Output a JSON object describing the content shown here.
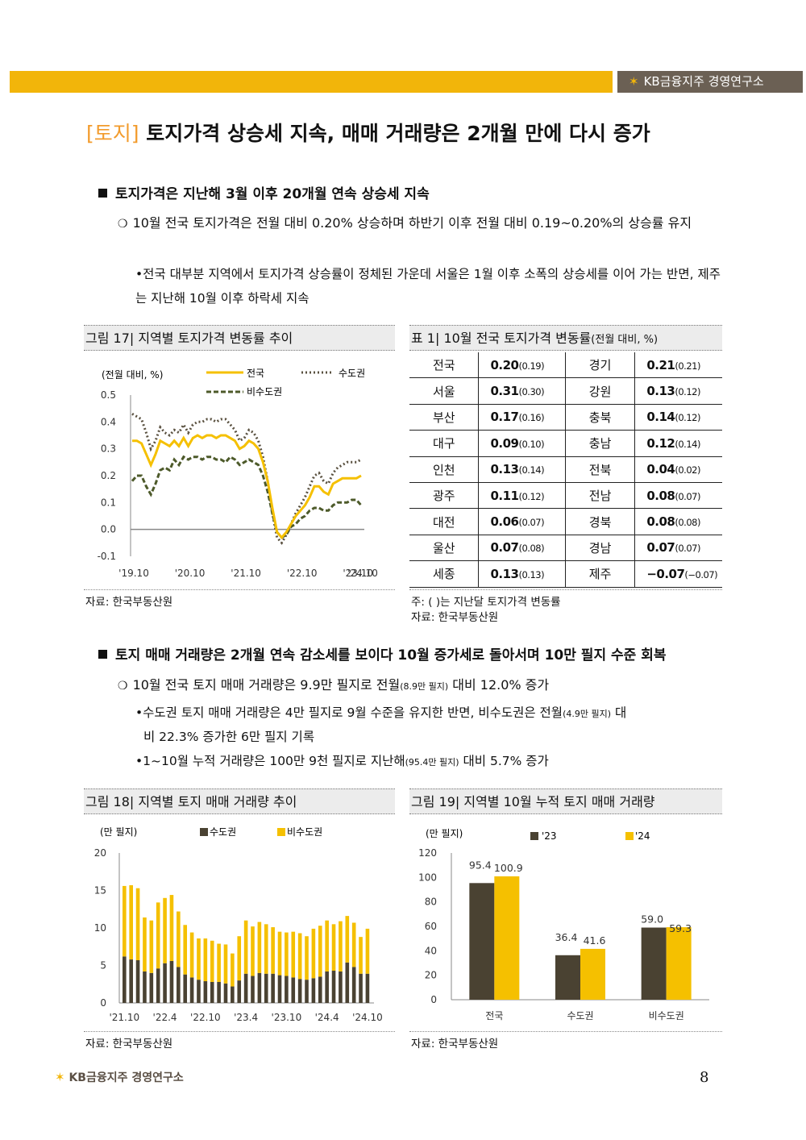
{
  "header": {
    "brand": "KB금융지주 경영연구소"
  },
  "title": {
    "tag": "[토지]",
    "text": "토지가격 상승세 지속, 매매 거래량은 2개월 만에 다시 증가"
  },
  "section1": {
    "heading": "토지가격은 지난해 3월 이후 20개월 연속 상승세 지속",
    "bullet": "10월 전국 토지가격은 전월 대비 0.20% 상승하며 하반기 이후 전월 대비 0.19~0.20%의 상승률 유지",
    "sub": "전국 대부분 지역에서 토지가격 상승률이 정체된 가운데 서울은 1월 이후 소폭의 상승세를 이어 가는 반면, 제주는 지난해 10월 이후 하락세 지속"
  },
  "fig17": {
    "title": "그림 17| 지역별 토지가격 변동률 추이",
    "source": "자료: 한국부동산원",
    "chart_data": {
      "type": "line",
      "ylabel": "(전월 대비, %)",
      "ylim": [
        -0.1,
        0.5
      ],
      "yticks": [
        "0.5",
        "0.4",
        "0.3",
        "0.2",
        "0.1",
        "0.0",
        "-0.1"
      ],
      "xticks": [
        "'19.10",
        "'20.10",
        "'21.10",
        "'22.10",
        "'23.10",
        "'24.10"
      ],
      "colors": {
        "national": "#f5c000",
        "capital": "#5a5140",
        "noncapital": "#4d5a2a"
      },
      "series": [
        {
          "name": "전국",
          "values": [
            0.33,
            0.33,
            0.32,
            0.28,
            0.24,
            0.28,
            0.33,
            0.32,
            0.31,
            0.33,
            0.31,
            0.34,
            0.31,
            0.34,
            0.35,
            0.34,
            0.35,
            0.35,
            0.34,
            0.35,
            0.35,
            0.34,
            0.33,
            0.3,
            0.31,
            0.33,
            0.32,
            0.3,
            0.25,
            0.18,
            0.08,
            -0.01,
            -0.03,
            -0.01,
            0.02,
            0.05,
            0.07,
            0.09,
            0.12,
            0.16,
            0.16,
            0.14,
            0.13,
            0.17,
            0.18,
            0.19,
            0.19,
            0.19,
            0.19,
            0.2
          ]
        },
        {
          "name": "수도권",
          "values": [
            0.43,
            0.42,
            0.41,
            0.36,
            0.3,
            0.33,
            0.38,
            0.36,
            0.35,
            0.37,
            0.36,
            0.39,
            0.36,
            0.39,
            0.4,
            0.4,
            0.41,
            0.41,
            0.4,
            0.41,
            0.41,
            0.39,
            0.37,
            0.33,
            0.34,
            0.37,
            0.36,
            0.33,
            0.27,
            0.18,
            0.06,
            -0.03,
            -0.05,
            -0.02,
            0.02,
            0.06,
            0.09,
            0.12,
            0.16,
            0.2,
            0.21,
            0.18,
            0.17,
            0.21,
            0.23,
            0.24,
            0.25,
            0.25,
            0.25,
            0.26
          ]
        },
        {
          "name": "비수도권",
          "values": [
            0.18,
            0.2,
            0.2,
            0.16,
            0.13,
            0.17,
            0.22,
            0.23,
            0.22,
            0.26,
            0.24,
            0.27,
            0.26,
            0.27,
            0.27,
            0.26,
            0.27,
            0.27,
            0.26,
            0.26,
            0.25,
            0.27,
            0.26,
            0.24,
            0.25,
            0.26,
            0.25,
            0.24,
            0.2,
            0.14,
            0.06,
            -0.01,
            -0.03,
            -0.02,
            0.01,
            0.02,
            0.04,
            0.05,
            0.07,
            0.08,
            0.08,
            0.07,
            0.07,
            0.09,
            0.1,
            0.1,
            0.1,
            0.11,
            0.11,
            0.09
          ]
        }
      ]
    }
  },
  "table1": {
    "title": "표 1| 10월 전국 토지가격 변동률",
    "title_sub": "(전월 대비, %)",
    "rows": [
      [
        "전국",
        "0.20",
        "(0.19)",
        "경기",
        "0.21",
        "(0.21)"
      ],
      [
        "서울",
        "0.31",
        "(0.30)",
        "강원",
        "0.13",
        "(0.12)"
      ],
      [
        "부산",
        "0.17",
        "(0.16)",
        "충북",
        "0.14",
        "(0.12)"
      ],
      [
        "대구",
        "0.09",
        "(0.10)",
        "충남",
        "0.12",
        "(0.14)"
      ],
      [
        "인천",
        "0.13",
        "(0.14)",
        "전북",
        "0.04",
        "(0.02)"
      ],
      [
        "광주",
        "0.11",
        "(0.12)",
        "전남",
        "0.08",
        "(0.07)"
      ],
      [
        "대전",
        "0.06",
        "(0.07)",
        "경북",
        "0.08",
        "(0.08)"
      ],
      [
        "울산",
        "0.07",
        "(0.08)",
        "경남",
        "0.07",
        "(0.07)"
      ],
      [
        "세종",
        "0.13",
        "(0.13)",
        "제주",
        "−0.07",
        "(−0.07)"
      ]
    ],
    "note": "주: ( )는 지난달 토지가격 변동률",
    "source": "자료: 한국부동산원"
  },
  "section2": {
    "heading": "토지 매매 거래량은 2개월 연속 감소세를 보이다 10월 증가세로 돌아서며 10만 필지 수준 회복",
    "bullet_a": "10월 전국 토지 매매 거래량은 9.9만 필지로 전월",
    "bullet_small": "(8.9만 필지)",
    "bullet_b": " 대비 12.0% 증가",
    "sub1_a": "수도권 토지 매매 거래량은 4만 필지로 9월 수준을 유지한 반면, 비수도권은 전월",
    "sub1_small": "(4.9만 필지)",
    "sub1_b": " 대",
    "sub1_c": "비 22.3% 증가한 6만 필지 기록",
    "sub2_a": "1~10월 누적 거래량은 100만 9천 필지로 지난해",
    "sub2_small": "(95.4만 필지)",
    "sub2_b": " 대비 5.7% 증가"
  },
  "fig18": {
    "title": "그림 18| 지역별 토지 매매 거래량 추이",
    "source": "자료: 한국부동산원",
    "chart_data": {
      "type": "bar",
      "stacked": true,
      "ylabel": "(만 필지)",
      "ylim": [
        0,
        20
      ],
      "yticks": [
        "20",
        "15",
        "10",
        "5",
        "0"
      ],
      "xticks": [
        "'21.10",
        "'22.4",
        "'22.10",
        "'23.4",
        "'23.10",
        "'24.4",
        "'24.10"
      ],
      "colors": {
        "capital": "#4a4232",
        "noncapital": "#f5c000"
      },
      "series": [
        {
          "name": "수도권",
          "values": [
            6.2,
            5.8,
            5.7,
            4.2,
            4.0,
            4.6,
            5.3,
            5.6,
            4.8,
            3.8,
            3.4,
            3.1,
            2.9,
            2.8,
            2.8,
            2.6,
            2.2,
            3.0,
            3.9,
            3.6,
            4.0,
            3.9,
            3.9,
            3.7,
            3.6,
            3.4,
            3.2,
            3.1,
            3.3,
            3.5,
            4.2,
            4.3,
            4.2,
            5.4,
            4.8,
            3.9,
            3.9
          ]
        },
        {
          "name": "비수도권",
          "values": [
            9.4,
            9.9,
            9.6,
            7.2,
            7.0,
            8.8,
            8.7,
            8.8,
            7.4,
            6.6,
            6.0,
            5.5,
            5.7,
            5.5,
            5.1,
            5.2,
            4.4,
            5.9,
            7.1,
            6.6,
            6.8,
            6.6,
            6.2,
            5.8,
            5.8,
            6.1,
            6.1,
            5.8,
            6.6,
            6.8,
            6.8,
            6.2,
            6.7,
            6.2,
            5.9,
            4.9,
            6.0
          ]
        }
      ]
    }
  },
  "fig19": {
    "title": "그림 19| 지역별 10월 누적 토지 매매 거래량",
    "source": "자료: 한국부동산원",
    "chart_data": {
      "type": "bar",
      "ylabel": "(만 필지)",
      "ylim": [
        0,
        120
      ],
      "yticks": [
        "120",
        "100",
        "80",
        "60",
        "40",
        "20",
        "0"
      ],
      "categories": [
        "전국",
        "수도권",
        "비수도권"
      ],
      "colors": {
        "y23": "#4a4232",
        "y24": "#f5c000"
      },
      "series": [
        {
          "name": "'23",
          "values": [
            95.4,
            36.4,
            59.0
          ],
          "labels": [
            "95.4",
            "36.4",
            "59.0"
          ]
        },
        {
          "name": "'24",
          "values": [
            100.9,
            41.6,
            59.3
          ],
          "labels": [
            "100.9",
            "41.6",
            "59.3"
          ]
        }
      ]
    }
  },
  "footer": {
    "brand": "KB금융지주 경영연구소",
    "page": "8"
  }
}
